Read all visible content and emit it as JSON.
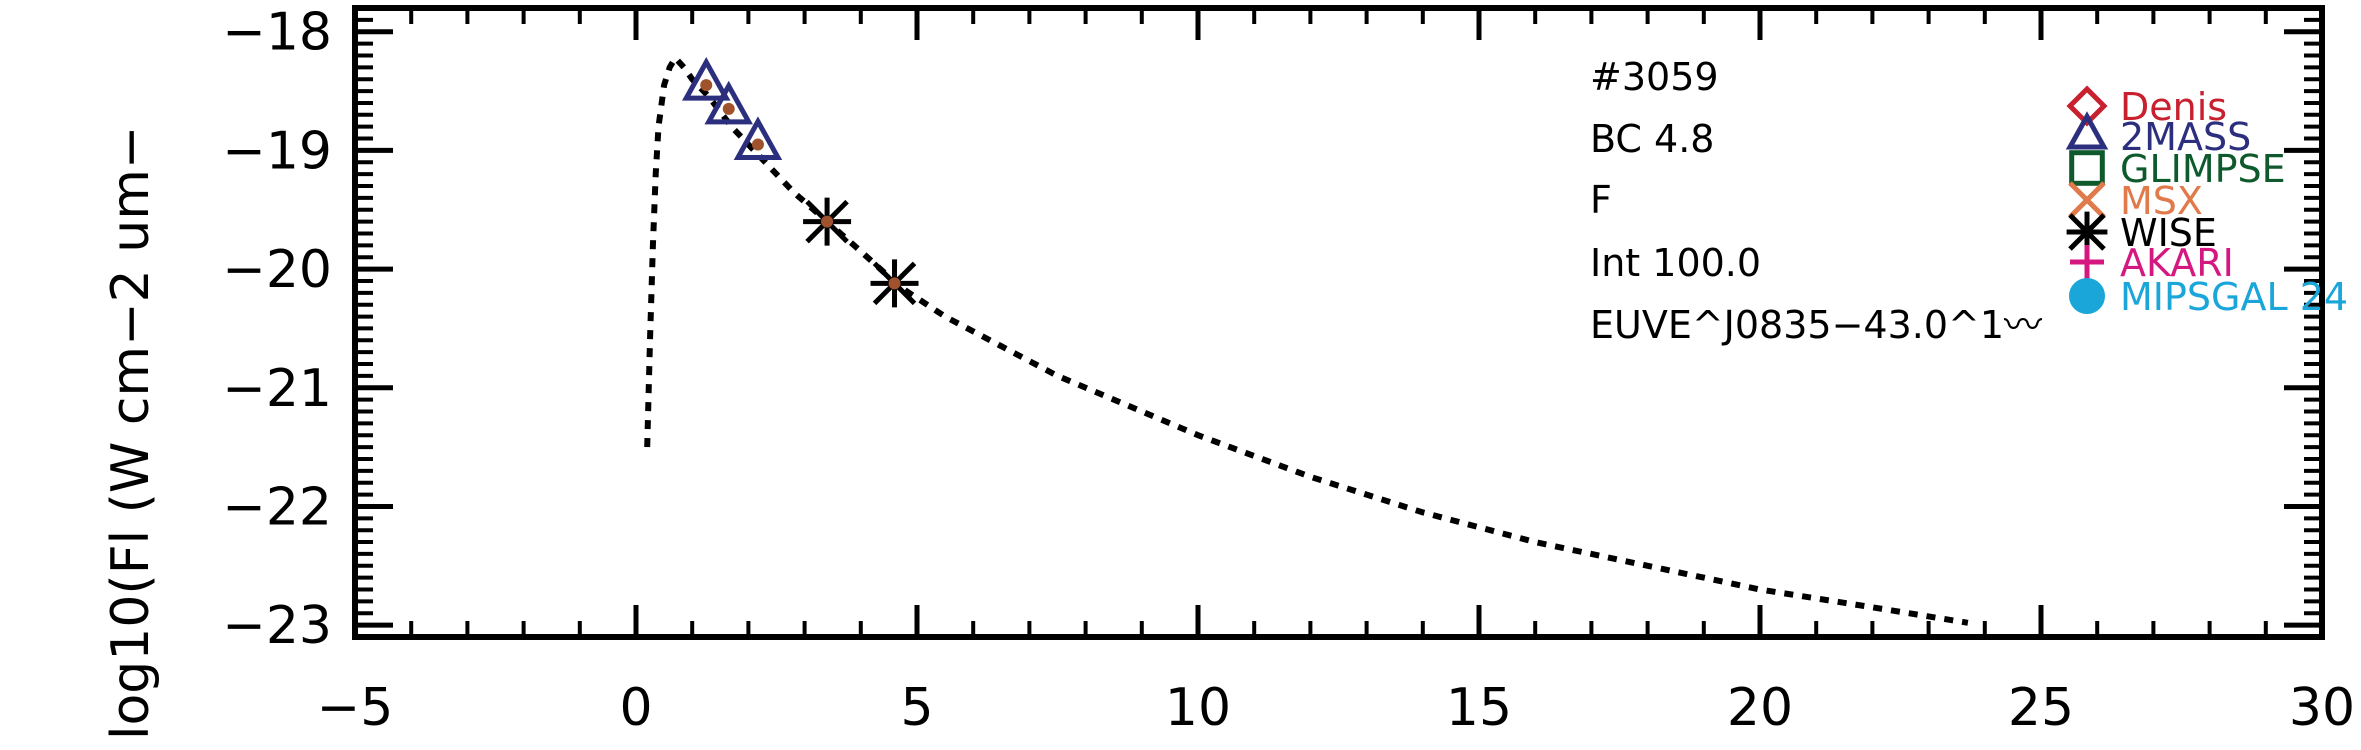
{
  "chart_data": {
    "type": "scatter",
    "title": "",
    "xlabel": "",
    "ylabel": "log10(Fl (W cm−2 um−",
    "xlim": [
      -5,
      30
    ],
    "ylim": [
      -23.1,
      -17.8
    ],
    "x_ticks": [
      -5,
      0,
      5,
      10,
      15,
      20,
      25,
      30
    ],
    "x_tick_labels": [
      "−5",
      "0",
      "5",
      "10",
      "15",
      "20",
      "25",
      "30"
    ],
    "y_ticks": [
      -23,
      -22,
      -21,
      -20,
      -19,
      -18
    ],
    "y_tick_labels": [
      "−23",
      "−22",
      "−21",
      "−20",
      "−19",
      "−18"
    ],
    "grid": false,
    "annotations": [
      "#3059",
      "BC 4.8",
      "F",
      "Int 100.0",
      "EUVE^J0835−43.0^1〰"
    ],
    "model_curve": {
      "style": "dotted",
      "color": "#000000",
      "x": [
        0.2,
        0.25,
        0.3,
        0.35,
        0.4,
        0.5,
        0.6,
        0.7,
        0.85,
        1.0,
        1.3,
        1.7,
        2.2,
        2.8,
        3.4,
        4.0,
        4.7,
        5.5,
        6.5,
        7.5,
        8.5,
        10,
        12,
        14,
        16,
        18,
        20,
        22,
        23.7
      ],
      "y": [
        -21.5,
        -20.6,
        -19.8,
        -19.2,
        -18.8,
        -18.45,
        -18.3,
        -18.22,
        -18.3,
        -18.4,
        -18.55,
        -18.8,
        -19.05,
        -19.35,
        -19.6,
        -19.85,
        -20.15,
        -20.4,
        -20.65,
        -20.9,
        -21.1,
        -21.4,
        -21.75,
        -22.05,
        -22.3,
        -22.5,
        -22.7,
        -22.85,
        -22.98
      ]
    },
    "series": [
      {
        "name": "2MASS",
        "marker": "triangle",
        "color": "#2b2f7d",
        "x": [
          1.25,
          1.65,
          2.17
        ],
        "y": [
          -18.45,
          -18.65,
          -18.95
        ]
      },
      {
        "name": "WISE",
        "marker": "asterisk",
        "color": "#000000",
        "x": [
          3.4,
          4.6
        ],
        "y": [
          -19.6,
          -20.12
        ]
      },
      {
        "name": "Denis",
        "marker": "diamond",
        "color": "#c8202f",
        "x": [],
        "y": []
      },
      {
        "name": "GLIMPSE",
        "marker": "square",
        "color": "#0e5a2c",
        "x": [],
        "y": []
      },
      {
        "name": "MSX",
        "marker": "x",
        "color": "#e07a4a",
        "x": [],
        "y": []
      },
      {
        "name": "AKARI",
        "marker": "plus",
        "color": "#d4187f",
        "x": [],
        "y": []
      },
      {
        "name": "MIPSGAL 24",
        "marker": "circle",
        "color": "#1aa6d8",
        "x": [],
        "y": []
      }
    ],
    "observed_points": {
      "color": "#a0522d",
      "x": [
        1.25,
        1.65,
        2.17,
        3.4,
        4.6
      ],
      "y": [
        -18.45,
        -18.65,
        -18.95,
        -19.6,
        -20.12
      ]
    },
    "legend": {
      "placement": "right",
      "entries": [
        {
          "label": "Denis",
          "marker": "diamond",
          "color": "#c8202f"
        },
        {
          "label": "2MASS",
          "marker": "triangle",
          "color": "#2b2f7d"
        },
        {
          "label": "GLIMPSE",
          "marker": "square",
          "color": "#0e5a2c"
        },
        {
          "label": "MSX",
          "marker": "x",
          "color": "#e07a4a"
        },
        {
          "label": "WISE",
          "marker": "asterisk",
          "color": "#000000"
        },
        {
          "label": "AKARI",
          "marker": "plus",
          "color": "#d4187f"
        },
        {
          "label": "MIPSGAL 24",
          "marker": "circle",
          "color": "#1aa6d8"
        }
      ]
    }
  }
}
